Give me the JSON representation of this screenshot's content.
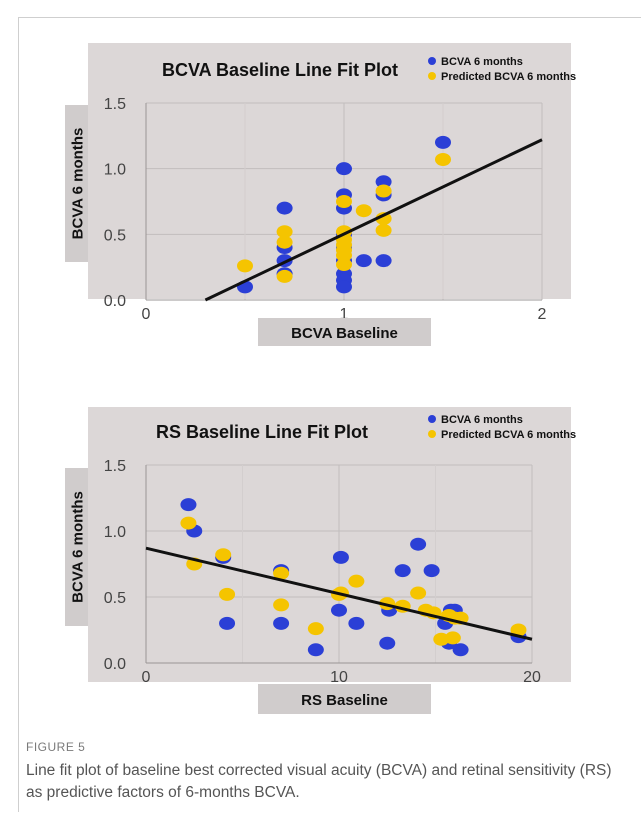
{
  "colors": {
    "observed": "#2b3fd6",
    "predicted": "#f5c400",
    "fit_line": "#111111",
    "panel_bg": "#dcd7d7",
    "plot_bg": "#dcd7d7",
    "label_box": "#d0cccc"
  },
  "chart_data": [
    {
      "type": "scatter",
      "title": "BCVA Baseline Line Fit Plot",
      "xlabel": "BCVA Baseline",
      "ylabel": "BCVA 6 months",
      "xlim": [
        0,
        2
      ],
      "ylim": [
        0,
        1.5
      ],
      "xticks": [
        "0",
        "1",
        "2"
      ],
      "yticks": [
        "0.0",
        "0.5",
        "1.0",
        "1.5"
      ],
      "legend_position": "top-right",
      "grid": true,
      "fit_line": {
        "x": [
          0.3,
          2.0
        ],
        "y": [
          0.0,
          1.22
        ]
      },
      "series": [
        {
          "name": "BCVA 6 months",
          "color_key": "observed",
          "points": [
            [
              0.5,
              0.1
            ],
            [
              0.7,
              0.7
            ],
            [
              0.7,
              0.4
            ],
            [
              0.7,
              0.3
            ],
            [
              0.7,
              0.2
            ],
            [
              1.0,
              1.0
            ],
            [
              1.0,
              0.8
            ],
            [
              1.0,
              0.7
            ],
            [
              1.0,
              0.5
            ],
            [
              1.0,
              0.4
            ],
            [
              1.0,
              0.3
            ],
            [
              1.0,
              0.2
            ],
            [
              1.0,
              0.15
            ],
            [
              1.0,
              0.1
            ],
            [
              1.1,
              0.3
            ],
            [
              1.2,
              0.9
            ],
            [
              1.2,
              0.8
            ],
            [
              1.2,
              0.3
            ],
            [
              1.5,
              1.2
            ]
          ]
        },
        {
          "name": "Predicted BCVA 6 months",
          "color_key": "predicted",
          "points": [
            [
              0.5,
              0.26
            ],
            [
              0.7,
              0.52
            ],
            [
              0.7,
              0.44
            ],
            [
              0.7,
              0.18
            ],
            [
              1.0,
              0.75
            ],
            [
              1.0,
              0.52
            ],
            [
              1.0,
              0.46
            ],
            [
              1.0,
              0.42
            ],
            [
              1.0,
              0.38
            ],
            [
              1.0,
              0.34
            ],
            [
              1.0,
              0.27
            ],
            [
              1.1,
              0.68
            ],
            [
              1.2,
              0.83
            ],
            [
              1.2,
              0.62
            ],
            [
              1.2,
              0.53
            ],
            [
              1.5,
              1.07
            ]
          ]
        }
      ]
    },
    {
      "type": "scatter",
      "title": "RS Baseline Line Fit Plot",
      "xlabel": "RS Baseline",
      "ylabel": "BCVA 6 months",
      "xlim": [
        0,
        20
      ],
      "ylim": [
        0,
        1.5
      ],
      "xticks": [
        "0",
        "10",
        "20"
      ],
      "yticks": [
        "0.0",
        "0.5",
        "1.0",
        "1.5"
      ],
      "legend_position": "top-right",
      "grid": true,
      "fit_line": {
        "x": [
          0,
          20
        ],
        "y": [
          0.87,
          0.18
        ]
      },
      "series": [
        {
          "name": "BCVA 6 months",
          "color_key": "observed",
          "points": [
            [
              2.2,
              1.2
            ],
            [
              2.5,
              1.0
            ],
            [
              4.0,
              0.8
            ],
            [
              4.2,
              0.3
            ],
            [
              7.0,
              0.7
            ],
            [
              7.0,
              0.3
            ],
            [
              8.8,
              0.1
            ],
            [
              10.1,
              0.8
            ],
            [
              10.0,
              0.4
            ],
            [
              10.9,
              0.3
            ],
            [
              12.5,
              0.15
            ],
            [
              12.6,
              0.4
            ],
            [
              13.3,
              0.7
            ],
            [
              14.1,
              0.9
            ],
            [
              14.8,
              0.7
            ],
            [
              15.5,
              0.3
            ],
            [
              15.8,
              0.4
            ],
            [
              16.0,
              0.4
            ],
            [
              15.7,
              0.15
            ],
            [
              16.3,
              0.1
            ],
            [
              19.3,
              0.2
            ]
          ]
        },
        {
          "name": "Predicted BCVA 6 months",
          "color_key": "predicted",
          "points": [
            [
              2.2,
              1.06
            ],
            [
              2.5,
              0.75
            ],
            [
              4.0,
              0.82
            ],
            [
              4.2,
              0.52
            ],
            [
              7.0,
              0.68
            ],
            [
              7.0,
              0.44
            ],
            [
              8.8,
              0.26
            ],
            [
              10.1,
              0.53
            ],
            [
              10.0,
              0.52
            ],
            [
              10.9,
              0.62
            ],
            [
              12.5,
              0.45
            ],
            [
              13.3,
              0.43
            ],
            [
              14.1,
              0.53
            ],
            [
              14.5,
              0.4
            ],
            [
              14.9,
              0.38
            ],
            [
              15.3,
              0.18
            ],
            [
              15.7,
              0.36
            ],
            [
              16.0,
              0.34
            ],
            [
              16.3,
              0.34
            ],
            [
              15.9,
              0.19
            ],
            [
              19.3,
              0.25
            ]
          ]
        }
      ]
    }
  ],
  "caption": {
    "label": "FIGURE 5",
    "text": "Line fit plot of baseline best corrected visual acuity (BCVA) and retinal sensitivity (RS) as predictive factors of 6-months BCVA."
  }
}
